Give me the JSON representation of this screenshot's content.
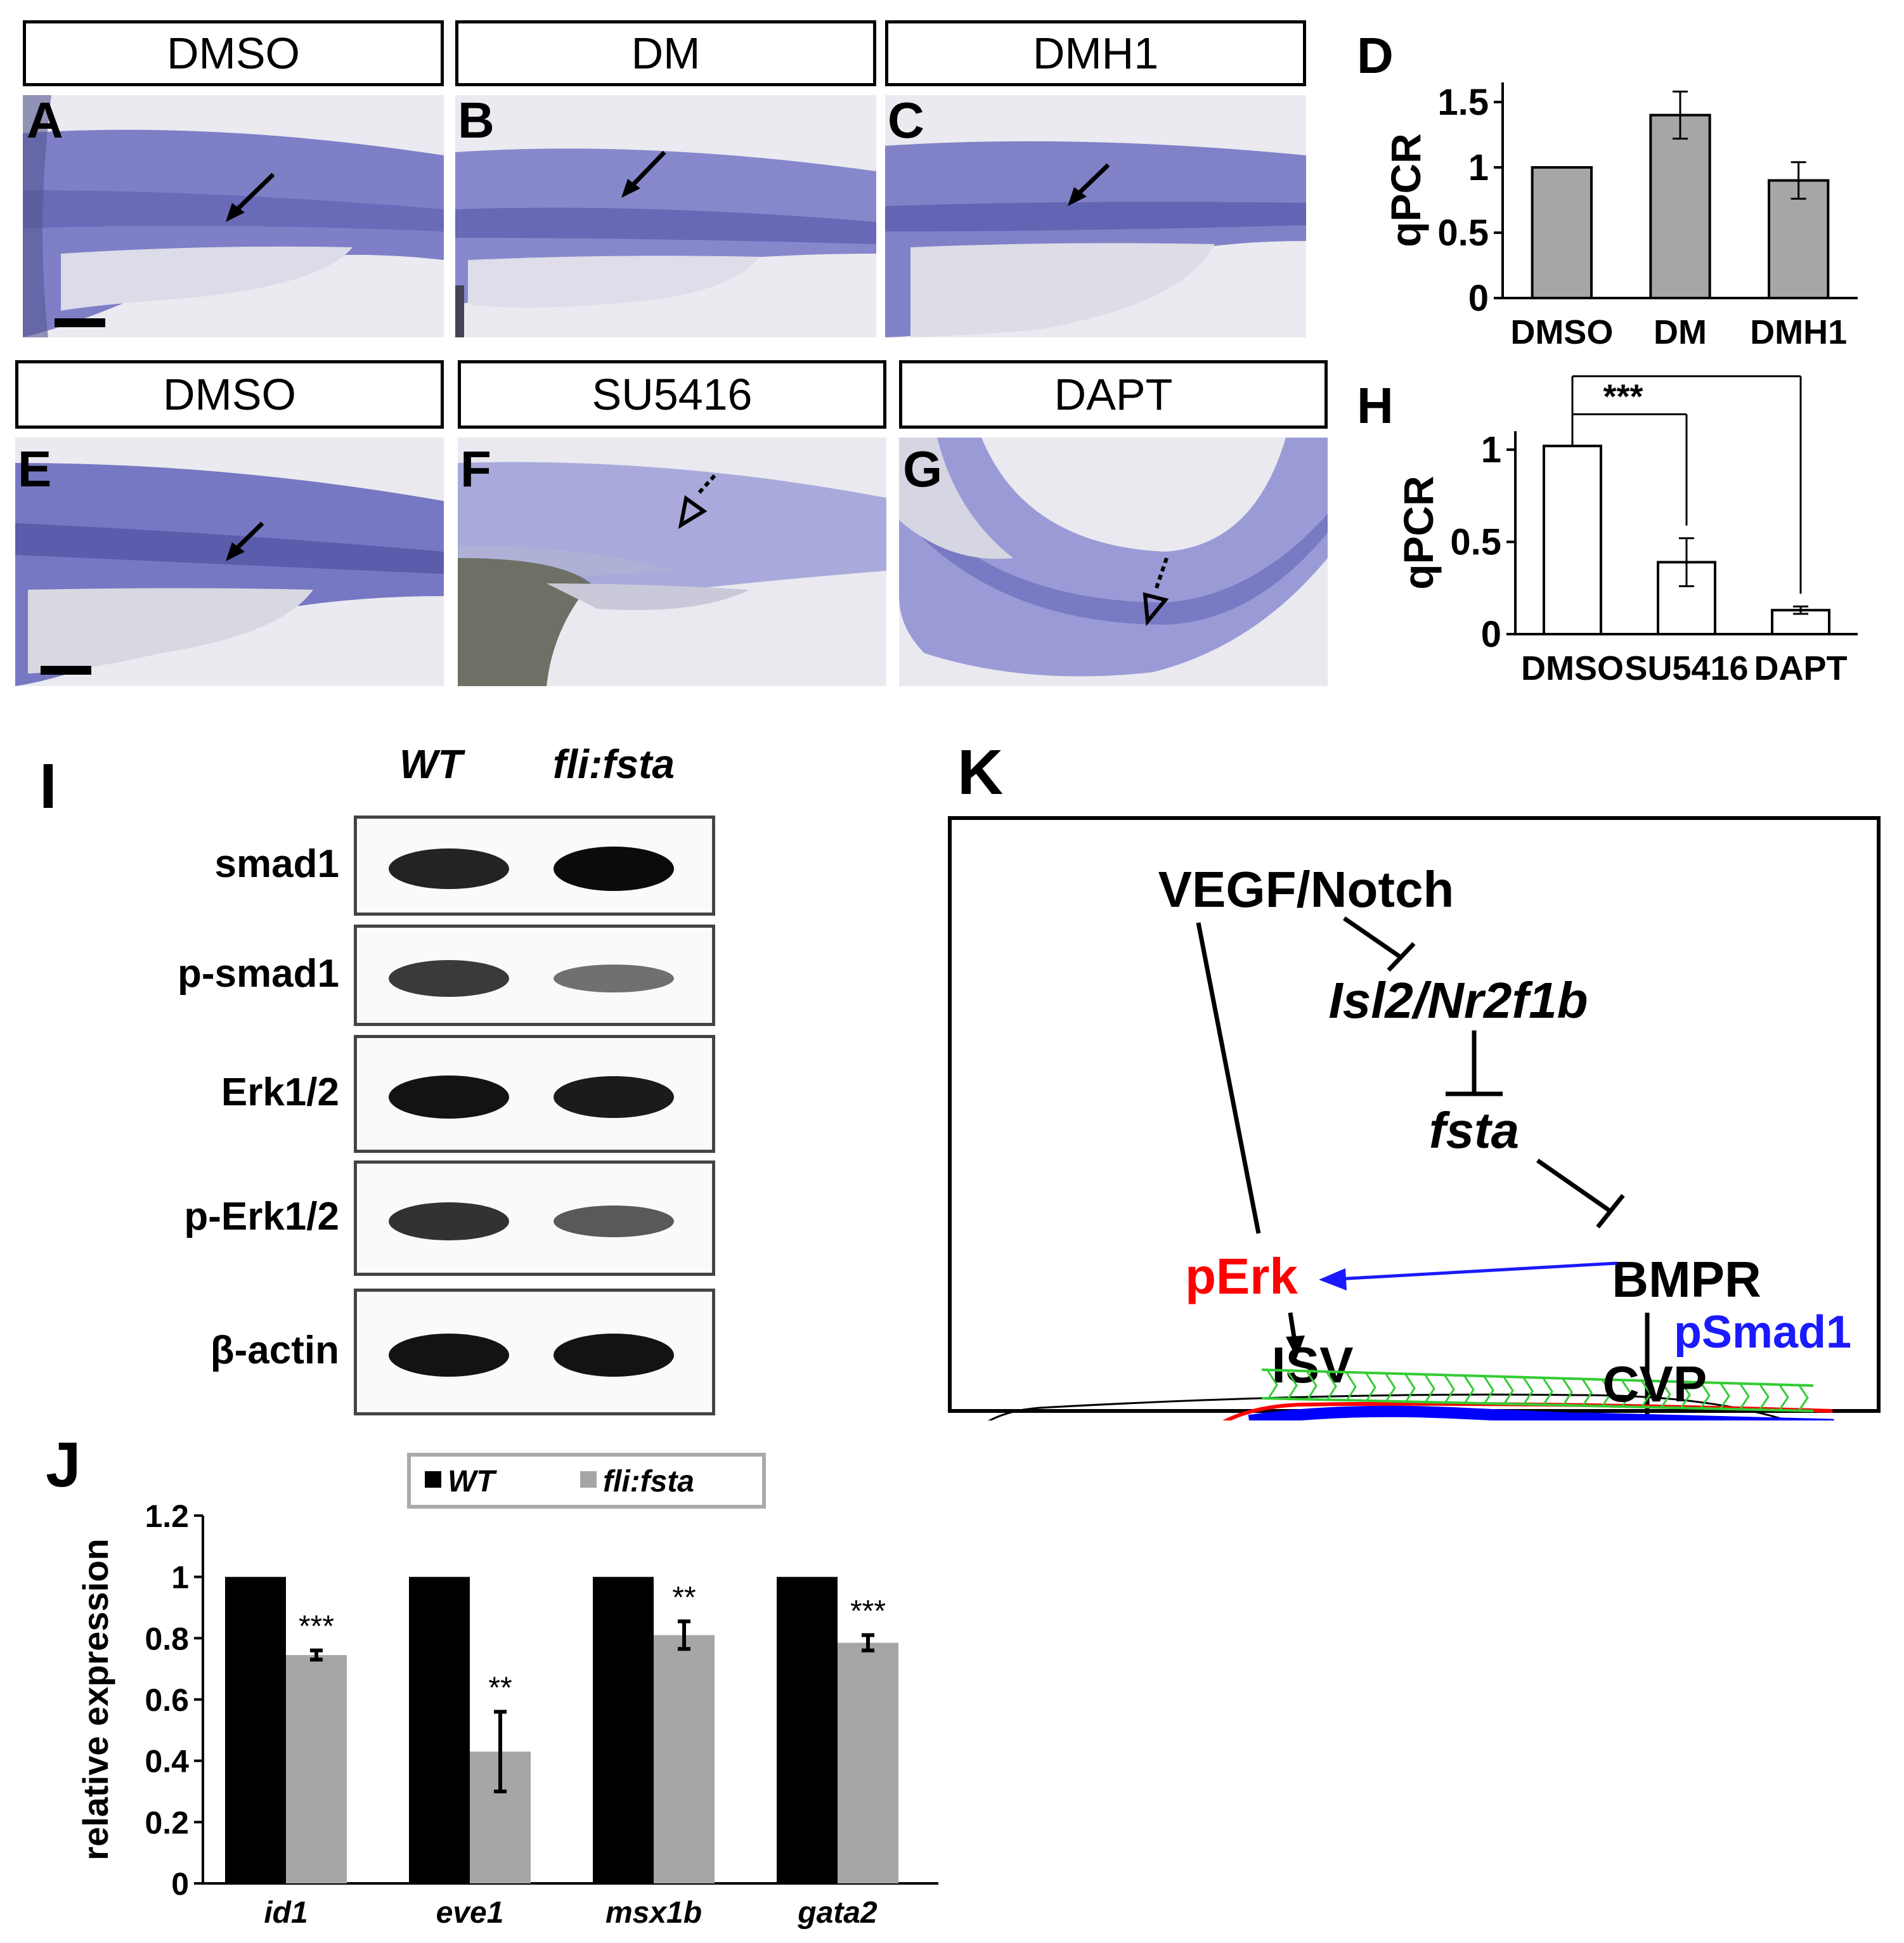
{
  "panels": {
    "A": {
      "letter": "A",
      "label": "DMSO"
    },
    "B": {
      "letter": "B",
      "label": "DM"
    },
    "C": {
      "letter": "C",
      "label": "DMH1"
    },
    "D": {
      "letter": "D"
    },
    "E": {
      "letter": "E",
      "label": "DMSO"
    },
    "F": {
      "letter": "F",
      "label": "SU5416"
    },
    "G": {
      "letter": "G",
      "label": "DAPT"
    },
    "H": {
      "letter": "H"
    },
    "I": {
      "letter": "I"
    },
    "J": {
      "letter": "J"
    },
    "K": {
      "letter": "K"
    }
  },
  "chart_data": [
    {
      "panel": "D",
      "type": "bar",
      "categories": [
        "DMSO",
        "DM",
        "DMH1"
      ],
      "values": [
        1.0,
        1.4,
        0.9
      ],
      "errors": [
        0,
        0.18,
        0.14
      ],
      "ylabel": "qPCR",
      "ylim": [
        0,
        1.5
      ],
      "yticks": [
        "0",
        "0.5",
        "1",
        "1.5"
      ],
      "bar_color": "#a6a6a6"
    },
    {
      "panel": "H",
      "type": "bar",
      "categories": [
        "DMSO",
        "SU5416",
        "DAPT"
      ],
      "values": [
        1.02,
        0.39,
        0.13
      ],
      "errors": [
        0,
        0.13,
        0.02
      ],
      "ylabel": "qPCR",
      "ylim": [
        0,
        1
      ],
      "yticks": [
        "0",
        "0.5",
        "1"
      ],
      "bar_color": "#ffffff",
      "significance": [
        "***",
        "***"
      ]
    },
    {
      "panel": "J",
      "type": "bar",
      "categories": [
        "id1",
        "eve1",
        "msx1b",
        "gata2"
      ],
      "series": [
        {
          "name": "WT",
          "values": [
            1,
            1,
            1,
            1
          ],
          "color": "#000000"
        },
        {
          "name": "fli:fsta",
          "values": [
            0.745,
            0.43,
            0.81,
            0.785
          ],
          "errors": [
            0.015,
            0.13,
            0.045,
            0.025
          ],
          "color": "#a6a6a6"
        }
      ],
      "significance": [
        "***",
        "**",
        "**",
        "***"
      ],
      "ylabel": "relative expression",
      "ylim": [
        0,
        1.2
      ],
      "yticks": [
        "0",
        "0.2",
        "0.4",
        "0.6",
        "0.8",
        "1",
        "1.2"
      ],
      "legend": "top"
    }
  ],
  "blot": {
    "lanes": [
      "WT",
      "fli:fsta"
    ],
    "rows": [
      {
        "name": "smad1",
        "intensity": [
          0.85,
          1.0
        ]
      },
      {
        "name": "p-smad1",
        "intensity": [
          0.7,
          0.35
        ]
      },
      {
        "name": "Erk1/2",
        "intensity": [
          0.95,
          0.9
        ]
      },
      {
        "name": "p-Erk1/2",
        "intensity": [
          0.75,
          0.5
        ]
      },
      {
        "name": "β-actin",
        "intensity": [
          0.95,
          0.95
        ]
      }
    ]
  },
  "diagram": {
    "vegf_notch": "VEGF/Notch",
    "isl2_nr2f1b": "Isl2/Nr2f1b",
    "fsta": "fsta",
    "perk": "pErk",
    "bmpr": "BMPR",
    "isv": "ISV",
    "psmad1": "pSmad1",
    "cvp": "CVP",
    "colors": {
      "perk": "#ff0000",
      "psmad1": "#1a1aff",
      "arrow_blue": "#1a1aff",
      "isv": "#33cc33",
      "artery": "#ff0000",
      "vein": "#0000ff"
    }
  }
}
